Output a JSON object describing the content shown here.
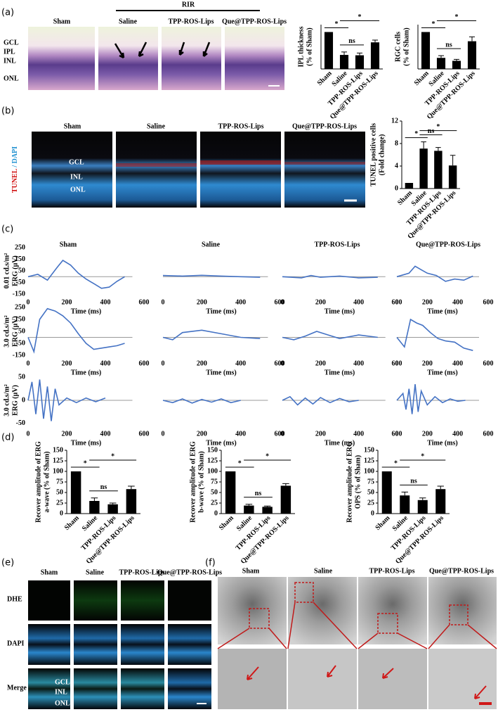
{
  "panel_labels": [
    "(a)",
    "(b)",
    "(c)",
    "(d)",
    "(e)",
    "(f)"
  ],
  "groups": [
    "Sham",
    "Saline",
    "TPP-ROS-Lips",
    "Que@TPP-ROS-Lips"
  ],
  "a": {
    "rir": "RIR",
    "layers": [
      "GCL",
      "IPL",
      "INL",
      "ONL"
    ]
  },
  "b": {
    "stain": [
      "TUNEL",
      "/ DAPI"
    ],
    "layers": [
      "GCL",
      "INL",
      "ONL"
    ]
  },
  "e": {
    "rows": [
      "DHE",
      "DAPI",
      "Merge"
    ],
    "layers": [
      "GCL",
      "INL",
      "ONL"
    ]
  },
  "chart_data": [
    {
      "type": "bar",
      "y_label": [
        "IPL thickness",
        "(% of Sham)"
      ],
      "categories": [
        "Sham",
        "Saline",
        "TPP-ROS-Lips",
        "Que@TPP-ROS-Lips"
      ],
      "values": [
        100,
        38,
        37,
        72
      ],
      "errors": [
        0,
        8,
        6,
        6
      ],
      "color": "#000000",
      "ylim": [
        0,
        120
      ],
      "annotations": [
        "*",
        "ns",
        "*"
      ]
    },
    {
      "type": "bar",
      "y_label": [
        "RGC cells",
        "(% of Sham)"
      ],
      "categories": [
        "Sham",
        "Saline",
        "TPP-ROS-Lips",
        "Que@TPP-ROS-Lips"
      ],
      "values": [
        100,
        30,
        22,
        75
      ],
      "errors": [
        0,
        6,
        4,
        12
      ],
      "color": "#000000",
      "ylim": [
        0,
        120
      ],
      "annotations": [
        "*",
        "ns",
        "*"
      ]
    },
    {
      "type": "bar",
      "y_label": [
        "TUNEL positive cells",
        "(Fold change)"
      ],
      "categories": [
        "Sham",
        "Saline",
        "TPP-ROS-Lips",
        "Que@TPP-ROS-Lips"
      ],
      "values": [
        1,
        7.1,
        6.7,
        4.1
      ],
      "errors": [
        0,
        1.2,
        0.6,
        1.8
      ],
      "color": "#000000",
      "ylim": [
        0,
        12
      ],
      "yticks": [
        0,
        4,
        8,
        12
      ],
      "annotations": [
        "*",
        "ns",
        "*"
      ]
    },
    {
      "type": "line",
      "y_label": [
        "0.01 cd.s/m²",
        "ERG  (μV)"
      ],
      "x_label": "Time  (ms)",
      "xlim": [
        0,
        600
      ],
      "xticks": [
        0,
        200,
        400,
        600
      ],
      "ylim": [
        -150,
        250
      ],
      "yticks": [
        250,
        150,
        50,
        -50,
        -150
      ],
      "reference_line": 0,
      "series": [
        {
          "color": "#4472c4",
          "x": [
            0,
            50,
            100,
            150,
            180,
            220,
            260,
            300,
            340,
            380,
            420,
            460,
            500
          ],
          "values": [
            0,
            20,
            -30,
            80,
            140,
            100,
            30,
            -20,
            -60,
            -100,
            -90,
            -40,
            0
          ]
        },
        {
          "color": "#4472c4",
          "x": [
            0,
            100,
            200,
            300,
            400,
            500
          ],
          "values": [
            10,
            5,
            12,
            5,
            0,
            -5
          ]
        },
        {
          "color": "#4472c4",
          "x": [
            0,
            100,
            150,
            200,
            300,
            400,
            500
          ],
          "values": [
            0,
            -10,
            10,
            -5,
            5,
            -10,
            -5
          ]
        },
        {
          "color": "#4472c4",
          "x": [
            0,
            80,
            120,
            160,
            200,
            260,
            320,
            380,
            440,
            500
          ],
          "values": [
            0,
            30,
            90,
            60,
            30,
            10,
            -40,
            -20,
            -30,
            5
          ]
        }
      ]
    },
    {
      "type": "line",
      "y_label": [
        "3.0 cd.s/m²",
        "ERG  (μV)"
      ],
      "x_label": "Time  (ms)",
      "xlim": [
        0,
        600
      ],
      "xticks": [
        0,
        200,
        400,
        600
      ],
      "ylim": [
        -150,
        250
      ],
      "yticks": [
        250,
        150,
        50,
        -50,
        -150
      ],
      "reference_line": 0,
      "series": [
        {
          "color": "#4472c4",
          "x": [
            0,
            30,
            60,
            100,
            140,
            180,
            220,
            260,
            300,
            340,
            380,
            420,
            460,
            500
          ],
          "values": [
            0,
            -120,
            150,
            240,
            220,
            180,
            120,
            30,
            -50,
            -100,
            -90,
            -80,
            -70,
            -50
          ]
        },
        {
          "color": "#4472c4",
          "x": [
            0,
            50,
            100,
            200,
            300,
            400,
            500
          ],
          "values": [
            0,
            -20,
            40,
            60,
            30,
            0,
            -10
          ]
        },
        {
          "color": "#4472c4",
          "x": [
            0,
            60,
            120,
            180,
            240,
            300,
            400,
            500
          ],
          "values": [
            0,
            -20,
            10,
            50,
            20,
            -10,
            20,
            0
          ]
        },
        {
          "color": "#4472c4",
          "x": [
            0,
            50,
            90,
            130,
            170,
            220,
            270,
            320,
            380,
            440,
            500
          ],
          "values": [
            0,
            -80,
            150,
            120,
            100,
            40,
            -10,
            -30,
            -40,
            -90,
            -110
          ]
        }
      ]
    },
    {
      "type": "line",
      "y_label": [
        "3.0 cd.s/m²",
        "ERG  (μV)"
      ],
      "x_label": "Time  (ms)",
      "xlim": [
        0,
        600
      ],
      "xticks": [
        0,
        200,
        400,
        600
      ],
      "ylim": [
        -55,
        55
      ],
      "yticks": [
        50,
        0,
        -50
      ],
      "reference_line": 0,
      "series": [
        {
          "color": "#4472c4",
          "x": [
            0,
            20,
            40,
            60,
            80,
            100,
            120,
            140,
            160,
            200,
            250,
            300,
            350,
            400
          ],
          "values": [
            0,
            40,
            -30,
            45,
            -40,
            30,
            -45,
            25,
            -10,
            5,
            -5,
            5,
            -3,
            5
          ]
        },
        {
          "color": "#4472c4",
          "x": [
            0,
            50,
            100,
            150,
            200,
            250,
            300,
            350,
            400
          ],
          "values": [
            0,
            -5,
            3,
            -6,
            2,
            -4,
            3,
            -5,
            0
          ]
        },
        {
          "color": "#4472c4",
          "x": [
            0,
            40,
            80,
            120,
            160,
            200,
            250,
            300,
            350,
            400
          ],
          "values": [
            0,
            8,
            -10,
            5,
            -8,
            6,
            -5,
            4,
            -3,
            0
          ]
        },
        {
          "color": "#4472c4",
          "x": [
            0,
            40,
            60,
            80,
            100,
            120,
            140,
            160,
            200,
            250,
            300,
            350,
            400,
            450
          ],
          "values": [
            0,
            15,
            -20,
            25,
            -30,
            35,
            -25,
            20,
            -10,
            8,
            -5,
            3,
            -2,
            0
          ]
        }
      ]
    },
    {
      "type": "bar",
      "y_label": [
        "Recover amplitude of ERG",
        "a-wave (% of Sham)"
      ],
      "categories": [
        "Sham",
        "Saline",
        "TPP-ROS-Lips",
        "Que@TPP-ROS-Lips"
      ],
      "values": [
        100,
        30,
        22,
        58
      ],
      "errors": [
        0,
        7,
        3,
        7
      ],
      "color": "#000000",
      "ylim": [
        0,
        150
      ],
      "yticks": [
        0,
        25,
        50,
        75,
        100,
        125,
        150
      ],
      "annotations": [
        "*",
        "ns",
        "*"
      ]
    },
    {
      "type": "bar",
      "y_label": [
        "Recover amplitude of ERG",
        "b-wave (% of Sham)"
      ],
      "categories": [
        "Sham",
        "Saline",
        "TPP-ROS-Lips",
        "Que@TPP-ROS-Lips"
      ],
      "values": [
        100,
        19,
        16,
        66
      ],
      "errors": [
        0,
        3,
        2,
        5
      ],
      "color": "#000000",
      "ylim": [
        0,
        150
      ],
      "yticks": [
        0,
        25,
        50,
        75,
        100,
        125,
        150
      ],
      "annotations": [
        "*",
        "ns",
        "*"
      ]
    },
    {
      "type": "bar",
      "y_label": [
        "Recover amplitude of ERG",
        "OPS (% of Sham)"
      ],
      "categories": [
        "Sham",
        "Saline",
        "TPP-ROS-Lips",
        "Que@TPP-ROS-Lips"
      ],
      "values": [
        100,
        43,
        32,
        58
      ],
      "errors": [
        0,
        8,
        5,
        7
      ],
      "color": "#000000",
      "ylim": [
        0,
        150
      ],
      "yticks": [
        0,
        25,
        50,
        75,
        100,
        125,
        150
      ],
      "annotations": [
        "*",
        "ns",
        "*"
      ]
    }
  ]
}
